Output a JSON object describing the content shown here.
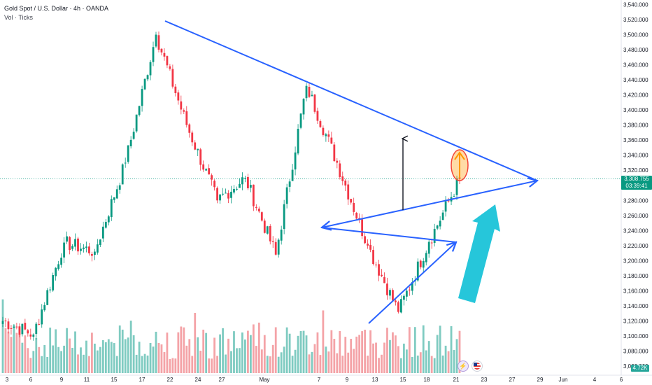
{
  "header": {
    "title": "Gold Spot / U.S. Dollar · 4h · OANDA",
    "indicator": "Vol · Ticks"
  },
  "price_tag": {
    "price": "3,308.755",
    "countdown": "03:39:41"
  },
  "volume_tag": "4.72K",
  "events": {
    "flash_icon": "lightning-icon",
    "flag_icon": "us-flag-icon"
  },
  "colors": {
    "up": "#089981",
    "down": "#f23645",
    "vol_up": "#7fcbc1",
    "vol_down": "#f4a3a7",
    "trendline": "#2962ff",
    "cyan_arrow": "#26c6da",
    "black_arrow": "#131722",
    "orange": "#ff9800",
    "ellipse": "#f44336"
  },
  "chart_data": {
    "type": "candlestick",
    "title": "Gold Spot / U.S. Dollar · 4h · OANDA",
    "xlabel": "",
    "ylabel": "",
    "ylim": [
      3048,
      3546
    ],
    "y_ticks": [
      3540,
      3520,
      3500,
      3480,
      3460,
      3440,
      3420,
      3400,
      3380,
      3360,
      3340,
      3320,
      3300,
      3280,
      3260,
      3240,
      3220,
      3200,
      3180,
      3160,
      3140,
      3120,
      3100,
      3080,
      3060
    ],
    "x_ticks": [
      "3",
      "6",
      "9",
      "11",
      "15",
      "17",
      "22",
      "24",
      "27",
      "May",
      "7",
      "9",
      "13",
      "15",
      "18",
      "21",
      "23",
      "27",
      "29",
      "Jun",
      "4",
      "6"
    ],
    "grid": false,
    "last_price": 3308.755,
    "current_price_line": 3308.755,
    "key_points": [
      {
        "label": "3",
        "close": 3120
      },
      {
        "label": "9",
        "close": 3102
      },
      {
        "label": "11",
        "close": 3224
      },
      {
        "label": "15",
        "close": 3212
      },
      {
        "label": "17",
        "close": 3330
      },
      {
        "label": "22",
        "close": 3500
      },
      {
        "label": "22",
        "close": 3380
      },
      {
        "label": "24",
        "close": 3280
      },
      {
        "label": "27",
        "close": 3310
      },
      {
        "label": "May",
        "close": 3208
      },
      {
        "label": "7",
        "close": 3432
      },
      {
        "label": "9",
        "close": 3330
      },
      {
        "label": "13",
        "close": 3220
      },
      {
        "label": "15",
        "close": 3132
      },
      {
        "label": "18",
        "close": 3225
      },
      {
        "label": "21",
        "close": 3308.755
      }
    ],
    "annotations": [
      {
        "type": "trendline",
        "from": {
          "x": "20 Apr",
          "y": 3526
        },
        "to": {
          "x": "29 May",
          "y": 3312
        }
      },
      {
        "type": "trendline",
        "from": {
          "x": "6 May",
          "y": 3242
        },
        "to": {
          "x": "29 May",
          "y": 3312
        }
      },
      {
        "type": "trendline",
        "from": {
          "x": "6 May",
          "y": 3242
        },
        "to": {
          "x": "21 May",
          "y": 3222
        }
      },
      {
        "type": "trendline",
        "from": {
          "x": "13 May",
          "y": 3112
        },
        "to": {
          "x": "21 May",
          "y": 3222
        }
      },
      {
        "type": "arrow",
        "direction": "up",
        "color": "black",
        "from_y": 3264,
        "to_y": 3378
      },
      {
        "type": "arrow",
        "direction": "up",
        "color": "cyan"
      },
      {
        "type": "ellipse",
        "center_y": 3326,
        "contains": "orange up arrow"
      }
    ]
  }
}
